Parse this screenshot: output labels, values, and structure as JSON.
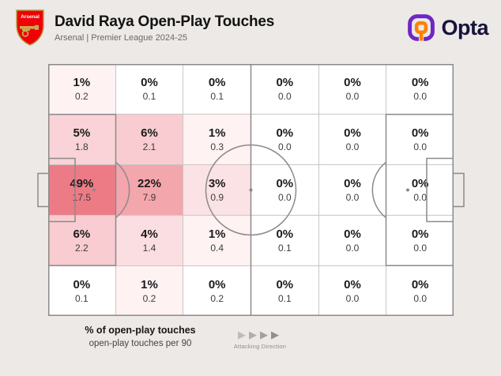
{
  "header": {
    "title": "David Raya Open-Play Touches",
    "subtitle": "Arsenal | Premier League 2024-25",
    "crest_text": "Arsenal",
    "brand_name": "Opta"
  },
  "legend": {
    "metric_primary": "% of open-play touches",
    "metric_secondary": "open-play touches per 90",
    "attacking_direction_label": "Attacking Direction",
    "arrow_glyph": "▶"
  },
  "colors": {
    "background": "#ECE9E6",
    "heat_base": "#E83C4B",
    "pitch_line": "#8D8989",
    "grid_line": "#CBC5C5",
    "arsenal_red": "#EF0107",
    "crest_gold": "#C8A951",
    "opta_purple": "#6E27C5",
    "opta_orange": "#FF8200",
    "wordmark_navy": "#17123B"
  },
  "chart_data": {
    "type": "heatmap",
    "title": "David Raya Open-Play Touches",
    "subtitle": "Arsenal | Premier League 2024-25",
    "orientation": "horizontal-pitch-attacking-right",
    "rows": 5,
    "columns": 6,
    "value_definition": {
      "primary": "% of open-play touches",
      "secondary": "open-play touches per 90"
    },
    "cells": [
      [
        {
          "pct": "1%",
          "per90": "0.2",
          "color": "#FEF2F3"
        },
        {
          "pct": "0%",
          "per90": "0.1",
          "color": "#FFFFFF"
        },
        {
          "pct": "0%",
          "per90": "0.1",
          "color": "#FFFFFF"
        },
        {
          "pct": "0%",
          "per90": "0.0",
          "color": "#FFFFFF"
        },
        {
          "pct": "0%",
          "per90": "0.0",
          "color": "#FFFFFF"
        },
        {
          "pct": "0%",
          "per90": "0.0",
          "color": "#FFFFFF"
        }
      ],
      [
        {
          "pct": "5%",
          "per90": "1.8",
          "color": "#F9D3D7"
        },
        {
          "pct": "6%",
          "per90": "2.1",
          "color": "#F8CCD0"
        },
        {
          "pct": "1%",
          "per90": "0.3",
          "color": "#FEF2F3"
        },
        {
          "pct": "0%",
          "per90": "0.0",
          "color": "#FFFFFF"
        },
        {
          "pct": "0%",
          "per90": "0.0",
          "color": "#FFFFFF"
        },
        {
          "pct": "0%",
          "per90": "0.0",
          "color": "#FFFFFF"
        }
      ],
      [
        {
          "pct": "49%",
          "per90": "17.5",
          "color": "#ED7B86"
        },
        {
          "pct": "22%",
          "per90": "7.9",
          "color": "#F4A6AD"
        },
        {
          "pct": "3%",
          "per90": "0.9",
          "color": "#FBE2E5"
        },
        {
          "pct": "0%",
          "per90": "0.0",
          "color": "#FFFFFF"
        },
        {
          "pct": "0%",
          "per90": "0.0",
          "color": "#FFFFFF"
        },
        {
          "pct": "0%",
          "per90": "0.0",
          "color": "#FFFFFF"
        }
      ],
      [
        {
          "pct": "6%",
          "per90": "2.2",
          "color": "#F8CCD0"
        },
        {
          "pct": "4%",
          "per90": "1.4",
          "color": "#FBDEE1"
        },
        {
          "pct": "1%",
          "per90": "0.4",
          "color": "#FEF2F3"
        },
        {
          "pct": "0%",
          "per90": "0.1",
          "color": "#FFFFFF"
        },
        {
          "pct": "0%",
          "per90": "0.0",
          "color": "#FFFFFF"
        },
        {
          "pct": "0%",
          "per90": "0.0",
          "color": "#FFFFFF"
        }
      ],
      [
        {
          "pct": "0%",
          "per90": "0.1",
          "color": "#FFFFFF"
        },
        {
          "pct": "1%",
          "per90": "0.2",
          "color": "#FEF2F3"
        },
        {
          "pct": "0%",
          "per90": "0.2",
          "color": "#FFFFFF"
        },
        {
          "pct": "0%",
          "per90": "0.1",
          "color": "#FFFFFF"
        },
        {
          "pct": "0%",
          "per90": "0.0",
          "color": "#FFFFFF"
        },
        {
          "pct": "0%",
          "per90": "0.0",
          "color": "#FFFFFF"
        }
      ]
    ]
  }
}
